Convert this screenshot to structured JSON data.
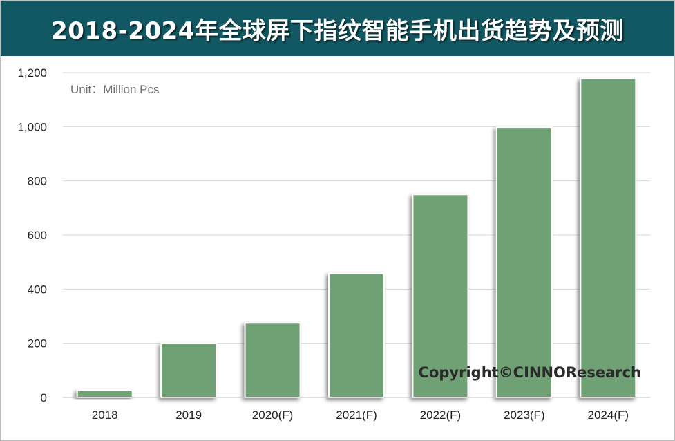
{
  "title": "2018-2024年全球屏下指纹智能手机出货趋势及预测",
  "unit_label": "Unit：Million Pcs",
  "copyright": "Copyright©CINNOResearch",
  "colors": {
    "title_bg": "#125862",
    "bar": "#6fa174",
    "grid": "#d9d9d9"
  },
  "chart_data": {
    "type": "bar",
    "title": "2018-2024年全球屏下指纹智能手机出货趋势及预测",
    "xlabel": "",
    "ylabel": "",
    "unit": "Unit：Million Pcs",
    "categories": [
      "2018",
      "2019",
      "2020(F)",
      "2021(F)",
      "2022(F)",
      "2023(F)",
      "2024(F)"
    ],
    "values": [
      28,
      200,
      275,
      458,
      750,
      998,
      1178
    ],
    "ylim": [
      0,
      1200
    ],
    "yticks": [
      0,
      200,
      400,
      600,
      800,
      1000,
      1200
    ],
    "ytick_labels": [
      "0",
      "200",
      "400",
      "600",
      "800",
      "1,000",
      "1,200"
    ],
    "grid": true,
    "legend": "none"
  }
}
